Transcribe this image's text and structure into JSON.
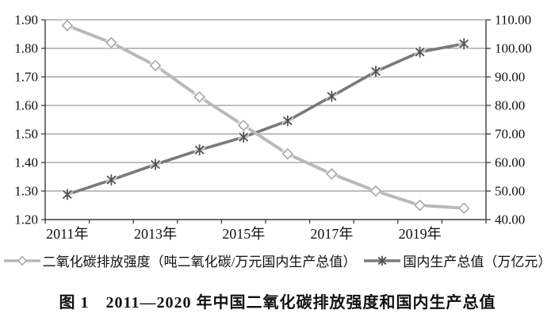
{
  "figure": {
    "caption": "图 1　2011—2020 年中国二氧化碳排放强度和国内生产总值"
  },
  "chart_data": {
    "type": "line",
    "title": "",
    "categories": [
      "2011年",
      "2012年",
      "2013年",
      "2014年",
      "2015年",
      "2016年",
      "2017年",
      "2018年",
      "2019年",
      "2020年"
    ],
    "x_axis": {
      "shown_labels": [
        "2011年",
        "2013年",
        "2015年",
        "2017年",
        "2019年"
      ],
      "shown_label_indices": [
        0,
        2,
        4,
        6,
        8
      ]
    },
    "left_axis": {
      "min": 1.2,
      "max": 1.9,
      "step": 0.1,
      "tick_labels": [
        "1.20",
        "1.30",
        "1.40",
        "1.50",
        "1.60",
        "1.70",
        "1.80",
        "1.90"
      ]
    },
    "right_axis": {
      "min": 40.0,
      "max": 110.0,
      "step": 10.0,
      "tick_labels": [
        "40.00",
        "50.00",
        "60.00",
        "70.00",
        "80.00",
        "90.00",
        "100.00",
        "110.00"
      ]
    },
    "grid": true,
    "legend_position": "bottom",
    "series": [
      {
        "id": "co2-intensity",
        "name": "二氧化碳排放强度（吨二氧化碳/万元国内生产总值）",
        "axis": "left",
        "marker": "diamond",
        "color": "#b9b9b9",
        "marker_color": "#a3a3a3",
        "values": [
          1.88,
          1.82,
          1.74,
          1.63,
          1.53,
          1.43,
          1.36,
          1.3,
          1.25,
          1.24
        ]
      },
      {
        "id": "gdp",
        "name": "国内生产总值（万亿元）",
        "axis": "right",
        "marker": "asterisk",
        "color": "#7a7a7a",
        "marker_color": "#525252",
        "values": [
          48.8,
          53.9,
          59.3,
          64.4,
          68.9,
          74.6,
          83.2,
          91.9,
          98.7,
          101.6
        ]
      }
    ],
    "colors": {
      "grid": "#7f7f7f",
      "axis": "#3d3d3d",
      "text": "#111111",
      "background": "#ffffff"
    }
  }
}
